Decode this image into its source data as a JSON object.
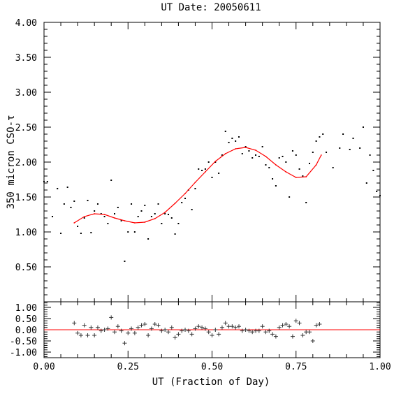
{
  "chart_data": [
    {
      "type": "scatter",
      "title": "UT Date: 20050611",
      "xlabel": "UT (Fraction of Day)",
      "ylabel": "350 micron CSO-τ",
      "xlim": [
        0.0,
        1.0
      ],
      "ylim": [
        0.0,
        4.0
      ],
      "x_ticks": [
        "0.00",
        "0.25",
        "0.50",
        "0.75",
        "1.00"
      ],
      "y_ticks": [
        "0.50",
        "1.00",
        "1.50",
        "2.00",
        "2.50",
        "3.00",
        "3.50",
        "4.00"
      ],
      "grid": false,
      "point_color": "#000000",
      "fit_color": "#ff0000",
      "points": {
        "x": [
          0.0,
          0.01,
          0.025,
          0.04,
          0.05,
          0.06,
          0.07,
          0.08,
          0.09,
          0.1,
          0.11,
          0.12,
          0.13,
          0.14,
          0.15,
          0.16,
          0.17,
          0.18,
          0.19,
          0.2,
          0.21,
          0.22,
          0.23,
          0.24,
          0.25,
          0.26,
          0.27,
          0.28,
          0.29,
          0.3,
          0.31,
          0.32,
          0.33,
          0.34,
          0.35,
          0.36,
          0.37,
          0.38,
          0.39,
          0.4,
          0.41,
          0.42,
          0.43,
          0.44,
          0.45,
          0.46,
          0.47,
          0.48,
          0.49,
          0.5,
          0.51,
          0.52,
          0.53,
          0.54,
          0.55,
          0.56,
          0.57,
          0.58,
          0.59,
          0.6,
          0.61,
          0.62,
          0.63,
          0.64,
          0.65,
          0.66,
          0.67,
          0.68,
          0.69,
          0.7,
          0.71,
          0.72,
          0.73,
          0.74,
          0.75,
          0.76,
          0.77,
          0.78,
          0.79,
          0.8,
          0.81,
          0.82,
          0.83,
          0.84,
          0.86,
          0.88,
          0.89,
          0.91,
          0.92,
          0.94,
          0.95,
          0.96,
          0.97,
          0.98,
          0.99,
          1.0
        ],
        "y": [
          1.72,
          1.72,
          1.22,
          1.62,
          0.98,
          1.4,
          1.64,
          1.35,
          1.44,
          1.08,
          0.98,
          1.2,
          1.45,
          0.99,
          1.3,
          1.4,
          1.26,
          1.22,
          1.12,
          1.74,
          1.26,
          1.35,
          1.16,
          0.58,
          1.0,
          1.4,
          1.0,
          1.22,
          1.3,
          1.38,
          0.9,
          1.22,
          1.26,
          1.4,
          1.12,
          1.26,
          1.25,
          1.2,
          0.97,
          1.12,
          1.42,
          1.48,
          1.6,
          1.32,
          1.62,
          1.9,
          1.88,
          1.9,
          2.0,
          1.78,
          2.0,
          1.84,
          2.1,
          2.44,
          2.28,
          2.34,
          2.3,
          2.36,
          2.12,
          2.22,
          2.16,
          2.06,
          2.1,
          2.08,
          2.22,
          1.96,
          1.92,
          1.76,
          1.66,
          2.06,
          2.08,
          2.0,
          1.5,
          2.16,
          2.1,
          1.9,
          1.8,
          1.42,
          1.98,
          2.14,
          2.3,
          2.36,
          2.4,
          2.14,
          1.92,
          2.2,
          2.4,
          2.18,
          2.34,
          2.2,
          2.5,
          1.7,
          2.1,
          1.88,
          1.58,
          1.52
        ]
      },
      "fit": {
        "x": [
          0.09,
          0.12,
          0.15,
          0.18,
          0.21,
          0.24,
          0.27,
          0.3,
          0.33,
          0.36,
          0.39,
          0.42,
          0.45,
          0.48,
          0.51,
          0.54,
          0.57,
          0.6,
          0.63,
          0.66,
          0.69,
          0.72,
          0.75,
          0.78,
          0.81,
          0.825
        ],
        "y": [
          1.13,
          1.22,
          1.26,
          1.25,
          1.2,
          1.16,
          1.13,
          1.14,
          1.19,
          1.28,
          1.41,
          1.55,
          1.71,
          1.86,
          2.01,
          2.12,
          2.19,
          2.21,
          2.17,
          2.08,
          1.96,
          1.86,
          1.78,
          1.79,
          1.96,
          2.1
        ]
      }
    },
    {
      "type": "scatter",
      "xlim": [
        0.0,
        1.0
      ],
      "ylim": [
        -1.25,
        1.25
      ],
      "x_ticks": [
        "0.00",
        "0.25",
        "0.50",
        "0.75",
        "1.00"
      ],
      "y_ticks": [
        "-1.00",
        "-0.50",
        "0.00",
        "0.50",
        "1.00"
      ],
      "zero_line_color": "#ff0000",
      "residuals": {
        "x": [
          0.09,
          0.1,
          0.11,
          0.12,
          0.13,
          0.14,
          0.15,
          0.16,
          0.17,
          0.18,
          0.19,
          0.2,
          0.21,
          0.22,
          0.23,
          0.24,
          0.25,
          0.26,
          0.27,
          0.28,
          0.29,
          0.3,
          0.31,
          0.32,
          0.33,
          0.34,
          0.35,
          0.36,
          0.37,
          0.38,
          0.39,
          0.4,
          0.41,
          0.42,
          0.43,
          0.44,
          0.45,
          0.46,
          0.47,
          0.48,
          0.49,
          0.5,
          0.51,
          0.52,
          0.53,
          0.54,
          0.55,
          0.56,
          0.57,
          0.58,
          0.59,
          0.6,
          0.61,
          0.62,
          0.63,
          0.64,
          0.65,
          0.66,
          0.67,
          0.68,
          0.69,
          0.7,
          0.71,
          0.72,
          0.73,
          0.74,
          0.75,
          0.76,
          0.77,
          0.78,
          0.79,
          0.8,
          0.81,
          0.82
        ],
        "y": [
          0.3,
          -0.15,
          -0.25,
          0.2,
          -0.25,
          0.1,
          -0.25,
          0.1,
          -0.05,
          0.0,
          0.05,
          0.55,
          -0.1,
          0.15,
          -0.05,
          -0.6,
          -0.15,
          0.05,
          -0.15,
          0.1,
          0.2,
          0.25,
          -0.25,
          0.05,
          0.25,
          0.2,
          -0.05,
          0.0,
          -0.1,
          0.1,
          -0.35,
          -0.2,
          -0.05,
          0.0,
          -0.05,
          -0.2,
          0.05,
          0.15,
          0.1,
          0.05,
          -0.1,
          -0.25,
          0.0,
          -0.2,
          0.1,
          0.3,
          0.15,
          0.15,
          0.1,
          0.15,
          -0.05,
          0.0,
          -0.05,
          -0.1,
          -0.05,
          -0.05,
          0.15,
          -0.1,
          -0.05,
          -0.2,
          -0.3,
          0.1,
          0.2,
          0.25,
          0.15,
          -0.3,
          0.4,
          0.3,
          -0.25,
          -0.1,
          -0.1,
          -0.5,
          0.2,
          0.25
        ]
      }
    }
  ]
}
